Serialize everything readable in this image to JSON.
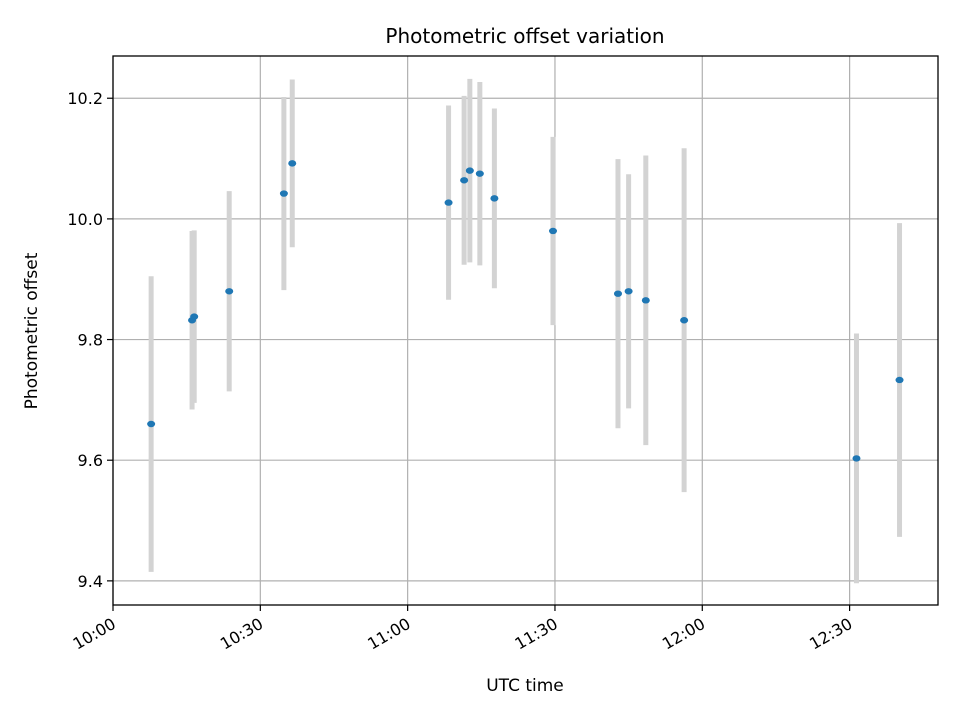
{
  "chart_data": {
    "type": "scatter",
    "title": "Photometric offset variation",
    "xlabel": "UTC time",
    "ylabel": "Photometric offset",
    "x_axis_type": "time",
    "xlim": [
      "10:00",
      "12:48"
    ],
    "ylim": [
      9.36,
      10.27
    ],
    "x_ticks": [
      "10:00",
      "10:30",
      "11:00",
      "11:30",
      "12:00",
      "12:30"
    ],
    "y_ticks": [
      9.4,
      9.6,
      9.8,
      10.0,
      10.2
    ],
    "grid": true,
    "colors": {
      "point": "#1f77b4",
      "errorbar": "#d3d3d3",
      "grid": "#b0b0b0"
    },
    "points": [
      {
        "x": "10:07:46",
        "y": 9.66,
        "yerr": 0.245
      },
      {
        "x": "10:16:06",
        "y": 9.832,
        "yerr": 0.148
      },
      {
        "x": "10:16:32",
        "y": 9.838,
        "yerr": 0.143
      },
      {
        "x": "10:23:40",
        "y": 9.88,
        "yerr": 0.166
      },
      {
        "x": "10:34:48",
        "y": 10.042,
        "yerr": 0.16
      },
      {
        "x": "10:36:30",
        "y": 10.092,
        "yerr": 0.139
      },
      {
        "x": "11:08:20",
        "y": 10.027,
        "yerr": 0.161
      },
      {
        "x": "11:11:30",
        "y": 10.064,
        "yerr": 0.14
      },
      {
        "x": "11:12:40",
        "y": 10.08,
        "yerr": 0.152
      },
      {
        "x": "11:14:42",
        "y": 10.075,
        "yerr": 0.152
      },
      {
        "x": "11:17:40",
        "y": 10.034,
        "yerr": 0.149
      },
      {
        "x": "11:29:36",
        "y": 9.98,
        "yerr": 0.156
      },
      {
        "x": "11:42:50",
        "y": 9.876,
        "yerr": 0.223
      },
      {
        "x": "11:45:00",
        "y": 9.88,
        "yerr": 0.194
      },
      {
        "x": "11:48:30",
        "y": 9.865,
        "yerr": 0.24
      },
      {
        "x": "11:56:18",
        "y": 9.832,
        "yerr": 0.285
      },
      {
        "x": "12:31:24",
        "y": 9.603,
        "yerr": 0.207
      },
      {
        "x": "12:40:10",
        "y": 9.733,
        "yerr": 0.26
      }
    ]
  }
}
